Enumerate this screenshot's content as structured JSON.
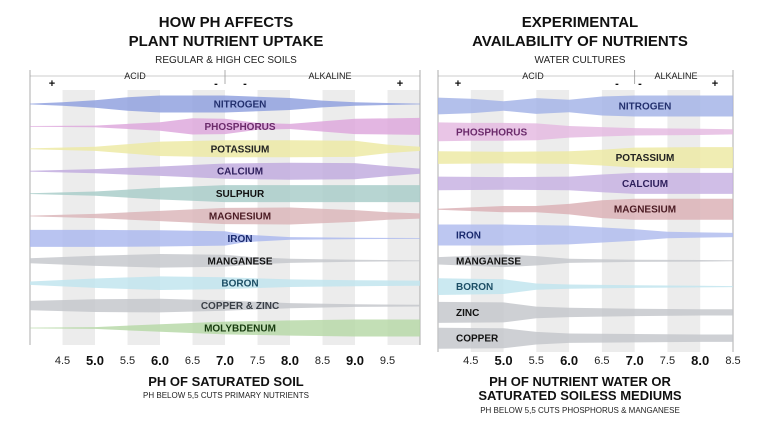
{
  "chart_data": [
    {
      "type": "area",
      "title_lines": [
        "HOW PH AFFECTS",
        "PLANT NUTRIENT UPTAKE"
      ],
      "subtitle": "REGULAR & HIGH CEC SOILS",
      "zone_left": "ACID",
      "zone_right": "ALKALINE",
      "signs": [
        "+",
        "-",
        "-",
        "+"
      ],
      "xlim": [
        4.0,
        10.0
      ],
      "ticks": [
        {
          "v": 4.5,
          "label": "4.5",
          "bold": false
        },
        {
          "v": 5.0,
          "label": "5.0",
          "bold": true
        },
        {
          "v": 5.5,
          "label": "5.5",
          "bold": false
        },
        {
          "v": 6.0,
          "label": "6.0",
          "bold": true
        },
        {
          "v": 6.5,
          "label": "6.5",
          "bold": false
        },
        {
          "v": 7.0,
          "label": "7.0",
          "bold": true
        },
        {
          "v": 7.5,
          "label": "7.5",
          "bold": false
        },
        {
          "v": 8.0,
          "label": "8.0",
          "bold": true
        },
        {
          "v": 8.5,
          "label": "8.5",
          "bold": false
        },
        {
          "v": 9.0,
          "label": "9.0",
          "bold": true
        },
        {
          "v": 9.5,
          "label": "9.5",
          "bold": false
        }
      ],
      "xlabel": "PH OF SATURATED SOIL",
      "note": "PH BELOW 5,5 CUTS PRIMARY NUTRIENTS",
      "series": [
        {
          "name": "NITROGEN",
          "color": "#8e9fde",
          "label_color": "#23306e",
          "points": [
            [
              4.0,
              0.05
            ],
            [
              4.5,
              0.2
            ],
            [
              5.0,
              0.45
            ],
            [
              5.5,
              0.8
            ],
            [
              6.0,
              1.0
            ],
            [
              7.0,
              1.0
            ],
            [
              8.0,
              0.7
            ],
            [
              8.5,
              0.4
            ],
            [
              9.0,
              0.2
            ],
            [
              10.0,
              0.05
            ]
          ]
        },
        {
          "name": "PHOSPHORUS",
          "color": "#dda6dc",
          "label_color": "#6b2a6b",
          "points": [
            [
              4.0,
              0.05
            ],
            [
              5.0,
              0.1
            ],
            [
              6.0,
              0.5
            ],
            [
              6.5,
              0.95
            ],
            [
              7.0,
              0.9
            ],
            [
              7.5,
              0.4
            ],
            [
              8.0,
              0.3
            ],
            [
              9.0,
              0.9
            ],
            [
              10.0,
              1.0
            ]
          ]
        },
        {
          "name": "POTASSIUM",
          "color": "#ede9a2",
          "label_color": "#222222",
          "points": [
            [
              4.0,
              0.05
            ],
            [
              5.0,
              0.25
            ],
            [
              6.0,
              0.85
            ],
            [
              7.0,
              1.0
            ],
            [
              8.0,
              1.0
            ],
            [
              9.0,
              0.95
            ],
            [
              9.5,
              0.5
            ],
            [
              10.0,
              0.25
            ]
          ]
        },
        {
          "name": "CALCIUM",
          "color": "#bfa9de",
          "label_color": "#2e1f5c",
          "points": [
            [
              4.0,
              0.05
            ],
            [
              5.0,
              0.25
            ],
            [
              6.0,
              0.55
            ],
            [
              7.0,
              0.9
            ],
            [
              8.0,
              1.0
            ],
            [
              9.0,
              0.95
            ],
            [
              9.5,
              0.6
            ],
            [
              10.0,
              0.3
            ]
          ]
        },
        {
          "name": "SULPHUR",
          "color": "#a7ccc8",
          "label_color": "#111111",
          "points": [
            [
              4.0,
              0.05
            ],
            [
              5.0,
              0.25
            ],
            [
              6.0,
              0.7
            ],
            [
              7.0,
              1.0
            ],
            [
              8.0,
              1.0
            ],
            [
              9.0,
              1.0
            ],
            [
              10.0,
              1.0
            ]
          ]
        },
        {
          "name": "MAGNESIUM",
          "color": "#dab4b8",
          "label_color": "#4a1a22",
          "points": [
            [
              4.0,
              0.05
            ],
            [
              5.0,
              0.25
            ],
            [
              6.0,
              0.6
            ],
            [
              7.0,
              0.95
            ],
            [
              8.0,
              1.0
            ],
            [
              9.0,
              0.7
            ],
            [
              9.5,
              0.45
            ],
            [
              10.0,
              0.3
            ]
          ]
        },
        {
          "name": "IRON",
          "color": "#a9b7ee",
          "label_color": "#1a2a6e",
          "points": [
            [
              4.0,
              1.0
            ],
            [
              5.0,
              1.0
            ],
            [
              6.0,
              0.95
            ],
            [
              7.0,
              0.85
            ],
            [
              7.3,
              0.45
            ],
            [
              8.0,
              0.15
            ],
            [
              9.0,
              0.08
            ],
            [
              10.0,
              0.05
            ]
          ]
        },
        {
          "name": "MANGANESE",
          "color": "#c4c7cc",
          "label_color": "#111111",
          "points": [
            [
              4.0,
              0.3
            ],
            [
              5.0,
              0.6
            ],
            [
              6.0,
              0.8
            ],
            [
              7.0,
              0.7
            ],
            [
              7.5,
              0.4
            ],
            [
              8.0,
              0.25
            ],
            [
              9.0,
              0.12
            ],
            [
              10.0,
              0.05
            ]
          ]
        },
        {
          "name": "BORON",
          "color": "#bfe4ee",
          "label_color": "#1d4f66",
          "points": [
            [
              4.0,
              0.2
            ],
            [
              5.0,
              0.55
            ],
            [
              6.0,
              0.8
            ],
            [
              7.0,
              0.7
            ],
            [
              8.0,
              0.45
            ],
            [
              9.0,
              0.35
            ],
            [
              10.0,
              0.3
            ]
          ]
        },
        {
          "name": "COPPER & ZINC",
          "color": "#c3c6cb",
          "label_color": "#3a3f47",
          "points": [
            [
              4.0,
              0.55
            ],
            [
              5.0,
              0.75
            ],
            [
              6.0,
              0.8
            ],
            [
              7.0,
              0.6
            ],
            [
              8.0,
              0.3
            ],
            [
              9.0,
              0.15
            ],
            [
              10.0,
              0.1
            ]
          ]
        },
        {
          "name": "MOLYBDENUM",
          "color": "#b6d8a6",
          "label_color": "#173b0f",
          "points": [
            [
              4.0,
              0.05
            ],
            [
              5.0,
              0.1
            ],
            [
              6.0,
              0.45
            ],
            [
              7.0,
              0.75
            ],
            [
              8.0,
              0.9
            ],
            [
              9.0,
              1.0
            ],
            [
              10.0,
              1.0
            ]
          ]
        }
      ]
    },
    {
      "type": "area",
      "title_lines": [
        "EXPERIMENTAL",
        "AVAILABILITY OF NUTRIENTS"
      ],
      "subtitle": "WATER CULTURES",
      "zone_left": "ACID",
      "zone_right": "ALKALINE",
      "signs": [
        "+",
        "-",
        "-",
        "+"
      ],
      "xlim": [
        4.0,
        8.5
      ],
      "ticks": [
        {
          "v": 4.5,
          "label": "4.5",
          "bold": false
        },
        {
          "v": 5.0,
          "label": "5.0",
          "bold": true
        },
        {
          "v": 5.5,
          "label": "5.5",
          "bold": false
        },
        {
          "v": 6.0,
          "label": "6.0",
          "bold": true
        },
        {
          "v": 6.5,
          "label": "6.5",
          "bold": false
        },
        {
          "v": 7.0,
          "label": "7.0",
          "bold": true
        },
        {
          "v": 7.5,
          "label": "7.5",
          "bold": false
        },
        {
          "v": 8.0,
          "label": "8.0",
          "bold": true
        },
        {
          "v": 8.5,
          "label": "8.5",
          "bold": false
        }
      ],
      "xlabel_lines": [
        "PH OF NUTRIENT WATER OR",
        "SATURATED SOILESS MEDIUMS"
      ],
      "note": "PH BELOW 5,5 CUTS PHOSPHORUS & MANGANESE",
      "series": [
        {
          "name": "NITROGEN",
          "color": "#a2b2e6",
          "label_color": "#23306e",
          "points": [
            [
              4.0,
              0.8
            ],
            [
              4.5,
              0.7
            ],
            [
              5.0,
              0.45
            ],
            [
              5.5,
              0.75
            ],
            [
              6.0,
              0.6
            ],
            [
              6.5,
              0.9
            ],
            [
              7.0,
              1.0
            ],
            [
              8.0,
              1.0
            ],
            [
              8.5,
              1.0
            ]
          ]
        },
        {
          "name": "PHOSPHORUS",
          "color": "#e4b8e0",
          "label_color": "#6b2a6b",
          "points": [
            [
              4.0,
              0.9
            ],
            [
              4.5,
              0.85
            ],
            [
              5.0,
              0.85
            ],
            [
              5.5,
              0.8
            ],
            [
              6.0,
              0.55
            ],
            [
              6.5,
              0.45
            ],
            [
              7.0,
              0.35
            ],
            [
              8.0,
              0.3
            ],
            [
              8.5,
              0.25
            ]
          ]
        },
        {
          "name": "POTASSIUM",
          "color": "#ede9a2",
          "label_color": "#222222",
          "points": [
            [
              4.0,
              0.6
            ],
            [
              5.0,
              0.55
            ],
            [
              6.0,
              0.6
            ],
            [
              6.5,
              0.75
            ],
            [
              7.0,
              0.95
            ],
            [
              8.0,
              1.0
            ],
            [
              8.5,
              1.0
            ]
          ]
        },
        {
          "name": "CALCIUM",
          "color": "#c6b0e2",
          "label_color": "#2e1f5c",
          "points": [
            [
              4.0,
              0.65
            ],
            [
              5.0,
              0.6
            ],
            [
              6.0,
              0.65
            ],
            [
              6.5,
              0.85
            ],
            [
              7.0,
              1.0
            ],
            [
              8.0,
              1.0
            ],
            [
              8.5,
              1.0
            ]
          ]
        },
        {
          "name": "MAGNESIUM",
          "color": "#dab0b5",
          "label_color": "#4a1a22",
          "points": [
            [
              4.0,
              0.05
            ],
            [
              5.0,
              0.3
            ],
            [
              5.5,
              0.3
            ],
            [
              6.0,
              0.5
            ],
            [
              6.5,
              0.85
            ],
            [
              7.0,
              1.0
            ],
            [
              8.0,
              1.0
            ],
            [
              8.5,
              1.0
            ]
          ]
        },
        {
          "name": "IRON",
          "color": "#aebbee",
          "label_color": "#1a2a6e",
          "points": [
            [
              4.0,
              1.0
            ],
            [
              5.0,
              1.0
            ],
            [
              6.0,
              0.9
            ],
            [
              7.0,
              0.55
            ],
            [
              7.5,
              0.3
            ],
            [
              8.0,
              0.25
            ],
            [
              8.5,
              0.2
            ]
          ]
        },
        {
          "name": "MANGANESE",
          "color": "#c4c7cc",
          "label_color": "#111111",
          "points": [
            [
              4.0,
              0.35
            ],
            [
              5.0,
              0.6
            ],
            [
              5.5,
              0.45
            ],
            [
              6.0,
              0.2
            ],
            [
              7.0,
              0.1
            ],
            [
              8.0,
              0.08
            ],
            [
              8.5,
              0.05
            ]
          ]
        },
        {
          "name": "BORON",
          "color": "#bfe4ee",
          "label_color": "#1d4f66",
          "points": [
            [
              4.0,
              0.8
            ],
            [
              5.0,
              0.7
            ],
            [
              5.5,
              0.3
            ],
            [
              6.0,
              0.2
            ],
            [
              7.0,
              0.12
            ],
            [
              8.0,
              0.08
            ],
            [
              8.5,
              0.05
            ]
          ]
        },
        {
          "name": "ZINC",
          "color": "#c3c6cb",
          "label_color": "#111111",
          "points": [
            [
              4.0,
              1.0
            ],
            [
              5.0,
              0.95
            ],
            [
              5.5,
              0.55
            ],
            [
              6.0,
              0.45
            ],
            [
              7.0,
              0.35
            ],
            [
              8.0,
              0.3
            ],
            [
              8.5,
              0.3
            ]
          ]
        },
        {
          "name": "COPPER",
          "color": "#c3c6cb",
          "label_color": "#111111",
          "points": [
            [
              4.0,
              1.0
            ],
            [
              5.0,
              0.95
            ],
            [
              5.5,
              0.6
            ],
            [
              6.0,
              0.45
            ],
            [
              7.0,
              0.4
            ],
            [
              8.0,
              0.35
            ],
            [
              8.5,
              0.35
            ]
          ]
        }
      ]
    }
  ]
}
